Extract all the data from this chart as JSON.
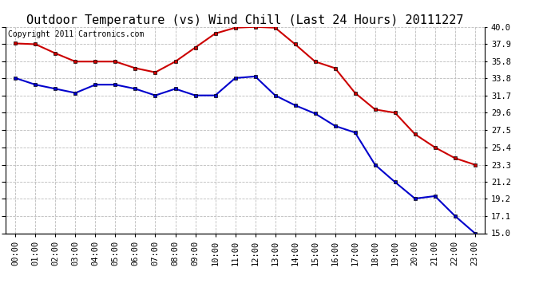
{
  "title": "Outdoor Temperature (vs) Wind Chill (Last 24 Hours) 20111227",
  "copyright": "Copyright 2011 Cartronics.com",
  "hours": [
    0,
    1,
    2,
    3,
    4,
    5,
    6,
    7,
    8,
    9,
    10,
    11,
    12,
    13,
    14,
    15,
    16,
    17,
    18,
    19,
    20,
    21,
    22,
    23
  ],
  "hour_labels": [
    "00:00",
    "01:00",
    "02:00",
    "03:00",
    "04:00",
    "05:00",
    "06:00",
    "07:00",
    "08:00",
    "09:00",
    "10:00",
    "11:00",
    "12:00",
    "13:00",
    "14:00",
    "15:00",
    "16:00",
    "17:00",
    "18:00",
    "19:00",
    "20:00",
    "21:00",
    "22:00",
    "23:00"
  ],
  "temp": [
    38.0,
    37.9,
    36.8,
    35.8,
    35.8,
    35.8,
    35.0,
    34.5,
    35.8,
    37.5,
    39.2,
    39.9,
    40.0,
    39.9,
    37.9,
    35.8,
    35.0,
    32.0,
    30.0,
    29.6,
    27.0,
    25.4,
    24.1,
    23.3
  ],
  "windchill": [
    33.8,
    33.0,
    32.5,
    32.0,
    33.0,
    33.0,
    32.5,
    31.7,
    32.5,
    31.7,
    31.7,
    33.8,
    34.0,
    31.7,
    30.5,
    29.5,
    28.0,
    27.2,
    23.3,
    21.2,
    19.2,
    19.5,
    17.1,
    15.0
  ],
  "temp_color": "#cc0000",
  "windchill_color": "#0000cc",
  "bg_color": "#ffffff",
  "plot_bg_color": "#ffffff",
  "grid_color": "#bbbbbb",
  "ylim": [
    15.0,
    40.0
  ],
  "yticks": [
    15.0,
    17.1,
    19.2,
    21.2,
    23.3,
    25.4,
    27.5,
    29.6,
    31.7,
    33.8,
    35.8,
    37.9,
    40.0
  ],
  "title_fontsize": 11,
  "copyright_fontsize": 7,
  "tick_fontsize": 7.5,
  "marker": "s",
  "marker_size": 3,
  "line_width": 1.5
}
